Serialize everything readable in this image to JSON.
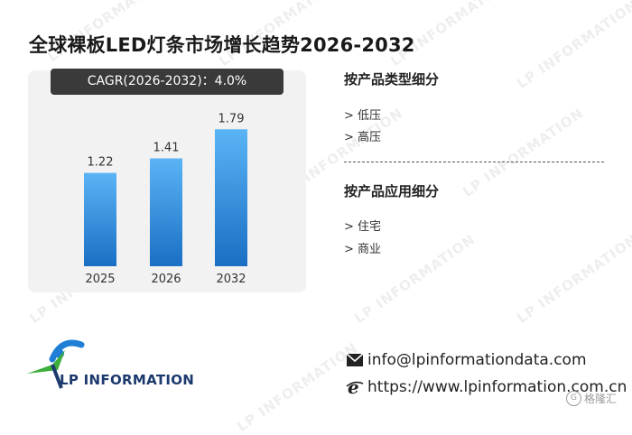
{
  "title": "全球裸板LED灯条市场增长趋势2026-2032",
  "cagr_label": "CAGR(2026-2032)：4.0%",
  "chart_data": {
    "type": "bar",
    "categories": [
      "2025",
      "2026",
      "2032"
    ],
    "values": [
      1.22,
      1.41,
      1.79
    ],
    "data_labels": [
      "1.22",
      "1.41",
      "1.79"
    ],
    "title": "",
    "xlabel": "",
    "ylabel": "",
    "ylim": [
      0,
      2.1
    ],
    "grid": false,
    "bar_color_top": "#5ab4f5",
    "bar_color_bottom": "#1a6fc4"
  },
  "segments": {
    "type_title": "按产品类型细分",
    "type_items": [
      "> 低压",
      "> 高压"
    ],
    "app_title": "按产品应用细分",
    "app_items": [
      "> 住宅",
      "> 商业"
    ]
  },
  "contact": {
    "email": "info@lpinformationdata.com",
    "website": "https://www.lpinformation.com.cn",
    "email_icon": "envelope-icon",
    "web_icon": "internet-explorer-icon"
  },
  "logo": {
    "text": "LP INFORMATION"
  },
  "watermark_text": "LP INFORMATION",
  "badge": {
    "text": "格隆汇"
  }
}
